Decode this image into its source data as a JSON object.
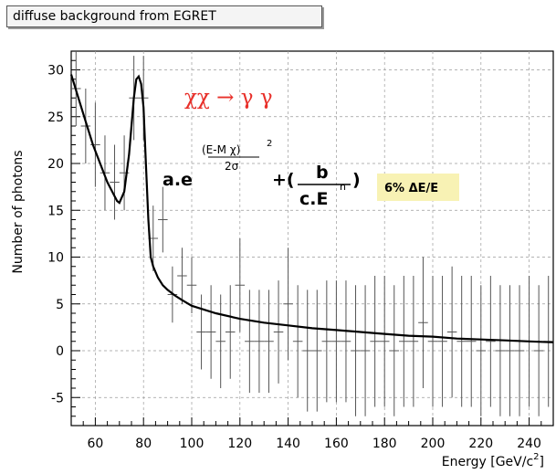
{
  "chart_data": {
    "type": "scatter",
    "title": "diffuse background from EGRET",
    "xlabel": "Energy [GeV/c",
    "xlabel_superscript": "2",
    "xlabel_suffix": "]",
    "ylabel": "Number of photons",
    "xlim": [
      50,
      250
    ],
    "ylim": [
      -8,
      32
    ],
    "x_ticks": [
      60,
      80,
      100,
      120,
      140,
      160,
      180,
      200,
      220,
      240
    ],
    "y_ticks": [
      -5,
      0,
      5,
      10,
      15,
      20,
      25,
      30
    ],
    "grid": true,
    "series": [
      {
        "style": "errorbars",
        "x": [
          52,
          56,
          60,
          64,
          68,
          72,
          76,
          80,
          84,
          88,
          92,
          96,
          100,
          104,
          108,
          112,
          116,
          120,
          124,
          128,
          132,
          136,
          140,
          144,
          148,
          152,
          156,
          160,
          164,
          168,
          172,
          176,
          180,
          184,
          188,
          192,
          196,
          200,
          204,
          208,
          212,
          216,
          220,
          224,
          228,
          232,
          236,
          240,
          244,
          248
        ],
        "y": [
          28,
          24,
          22,
          19,
          18,
          19,
          27,
          27,
          12,
          14,
          6,
          8,
          7,
          2,
          2,
          1,
          2,
          7,
          1,
          1,
          1,
          2,
          5,
          1,
          0,
          0,
          1,
          1,
          1,
          0,
          0,
          1,
          1,
          0,
          1,
          1,
          3,
          1,
          1,
          2,
          1,
          1,
          0,
          1,
          0,
          0,
          0,
          1,
          0,
          1
        ],
        "yerr": [
          4,
          4,
          4.5,
          4,
          4,
          4,
          4.5,
          4.5,
          3.5,
          3.5,
          3,
          3,
          3,
          4,
          5,
          5,
          5,
          5,
          5.5,
          5.5,
          5.5,
          5.5,
          6,
          6,
          6.5,
          6.5,
          6.5,
          6.5,
          6.5,
          7,
          7,
          7,
          7,
          7,
          7,
          7,
          7,
          7,
          7,
          7,
          7,
          7,
          7,
          7,
          7,
          7,
          7,
          7,
          7,
          7
        ]
      },
      {
        "style": "fit-line",
        "x": [
          50,
          53,
          56,
          59,
          62,
          65,
          67,
          69,
          70,
          72,
          74,
          75,
          76,
          77,
          78,
          79,
          80,
          81,
          82,
          83,
          84,
          86,
          88,
          90,
          93,
          96,
          100,
          105,
          110,
          120,
          130,
          140,
          150,
          160,
          170,
          180,
          190,
          200,
          210,
          220,
          230,
          240,
          250
        ],
        "y": [
          29.5,
          27,
          24.5,
          22,
          20,
          18,
          17,
          16,
          15.8,
          17,
          21,
          24,
          27,
          29,
          29.3,
          28.5,
          26,
          20,
          14,
          10,
          9,
          7.8,
          7,
          6.5,
          5.9,
          5.4,
          4.8,
          4.4,
          4.0,
          3.4,
          3.0,
          2.7,
          2.4,
          2.2,
          2.0,
          1.8,
          1.6,
          1.5,
          1.3,
          1.2,
          1.1,
          1.0,
          0.9
        ]
      }
    ],
    "annotations": {
      "reaction": "χχ → γ γ",
      "formula_prefix": "a.e",
      "formula_exponent": "(E-M χ)",
      "formula_exponent_power": "2",
      "formula_denominator": "2σ",
      "formula_plus": "+(",
      "formula_b": "b",
      "formula_cE": "c.E",
      "formula_n": "n",
      "formula_close": ")",
      "resolution": "6% ΔE/E"
    },
    "colors": {
      "annotation_red": "#e8302a",
      "resolution_box": "#f8f2b4",
      "grid": "#9a9a9a"
    }
  }
}
